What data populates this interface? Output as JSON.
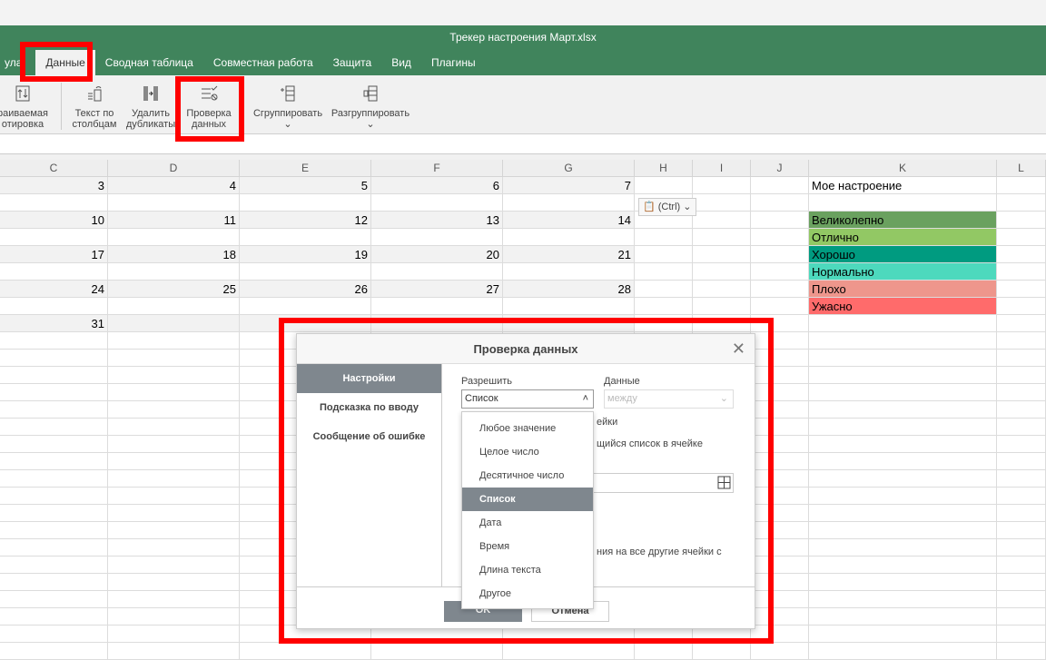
{
  "window": {
    "title": "Трекер настроения Март.xlsx"
  },
  "tabs": [
    {
      "label": "ула"
    },
    {
      "label": "Данные",
      "active": true
    },
    {
      "label": "Сводная таблица"
    },
    {
      "label": "Совместная работа"
    },
    {
      "label": "Защита"
    },
    {
      "label": "Вид"
    },
    {
      "label": "Плагины"
    }
  ],
  "toolbar": {
    "custom_sort": "раиваемая\nотировка",
    "text_to_columns": "Текст по\nстолбцам",
    "remove_duplicates": "Удалить\nдубликаты",
    "data_validation": "Проверка\nданных",
    "group": "Сгруппировать",
    "ungroup": "Разгруппировать"
  },
  "columns": [
    "C",
    "D",
    "E",
    "F",
    "G",
    "H",
    "I",
    "J",
    "K",
    "L"
  ],
  "rows": [
    [
      "3",
      "4",
      "5",
      "6",
      "7"
    ],
    [],
    [
      "10",
      "11",
      "12",
      "13",
      "14"
    ],
    [],
    [
      "17",
      "18",
      "19",
      "20",
      "21"
    ],
    [],
    [
      "24",
      "25",
      "26",
      "27",
      "28"
    ],
    [],
    [
      "31"
    ]
  ],
  "mood": {
    "title": "Мое настроение",
    "items": [
      {
        "label": "Великолепно",
        "color": "#6aa15f"
      },
      {
        "label": "Отлично",
        "color": "#92c864"
      },
      {
        "label": "Хорошо",
        "color": "#009b80"
      },
      {
        "label": "Нормально",
        "color": "#4dd9bd"
      },
      {
        "label": "Плохо",
        "color": "#ee968c"
      },
      {
        "label": "Ужасно",
        "color": "#ff6b6b"
      }
    ]
  },
  "paste": {
    "label": "(Ctrl)"
  },
  "dialog": {
    "title": "Проверка данных",
    "tabs": [
      "Настройки",
      "Подсказка по вводу",
      "Сообщение об ошибке"
    ],
    "allow_label": "Разрешить",
    "allow_value": "Список",
    "data_label": "Данные",
    "data_value": "между",
    "behind_1": "ейки",
    "behind_2": "щийся список в ячейке",
    "behind_3": "ния на все другие ячейки с",
    "options": [
      "Любое значение",
      "Целое число",
      "Десятичное число",
      "Список",
      "Дата",
      "Время",
      "Длина текста",
      "Другое"
    ],
    "ok": "OK",
    "cancel": "Отмена"
  },
  "colors": {
    "accent": "#40845c",
    "highlight": "#ff0000"
  }
}
